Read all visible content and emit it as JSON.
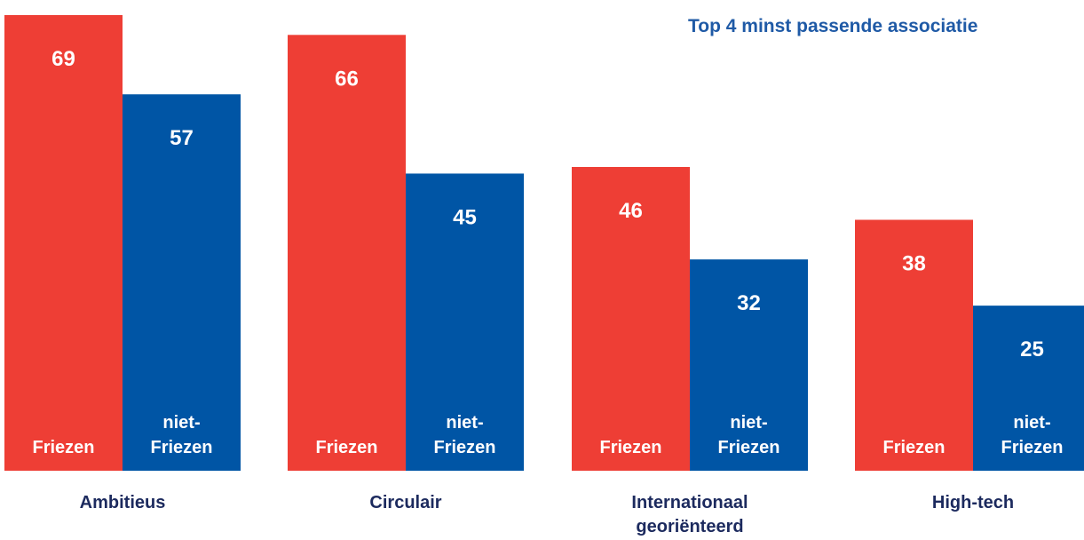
{
  "chart_data": {
    "type": "bar",
    "title": "Top 4 minst passende associatie",
    "categories": [
      "Ambitieus",
      "Circulair",
      "Internationaal georiënteerd",
      "High-tech"
    ],
    "category_lines": [
      [
        "Ambitieus"
      ],
      [
        "Circulair"
      ],
      [
        "Internationaal",
        "georiënteerd"
      ],
      [
        "High-tech"
      ]
    ],
    "series": [
      {
        "name": "Friezen",
        "name_lines": [
          "Friezen"
        ],
        "values": [
          69,
          66,
          46,
          38
        ],
        "color": "#ee3e35"
      },
      {
        "name": "niet-Friezen",
        "name_lines": [
          "niet-",
          "Friezen"
        ],
        "values": [
          57,
          45,
          32,
          25
        ],
        "color": "#0055a5"
      }
    ],
    "ylim": [
      0,
      69
    ],
    "grid": false,
    "legend": "none"
  }
}
